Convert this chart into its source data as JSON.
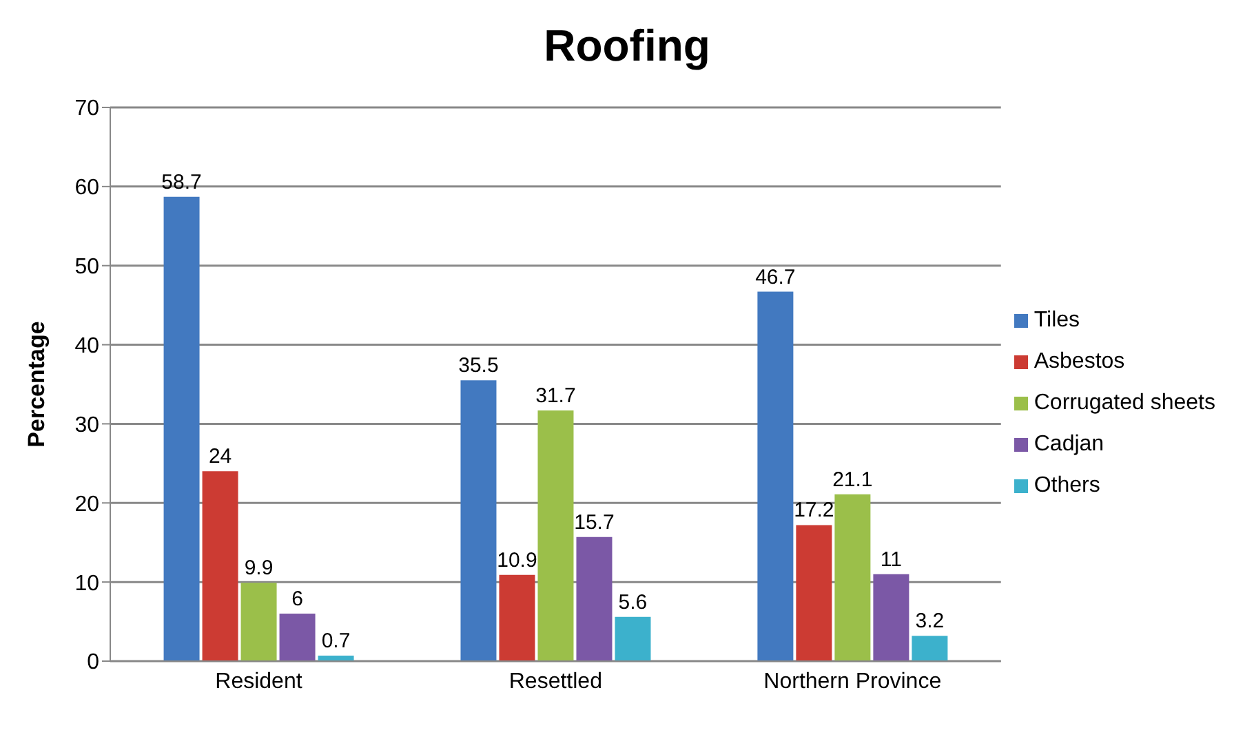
{
  "chart_data": {
    "type": "bar",
    "title": "Roofing",
    "ylabel": "Percentage",
    "categories": [
      "Resident",
      "Resettled",
      "Northern Province"
    ],
    "series": [
      {
        "name": "Tiles",
        "color": "#4279c0",
        "values": [
          58.7,
          35.5,
          46.7
        ]
      },
      {
        "name": "Asbestos",
        "color": "#cc3b33",
        "values": [
          24,
          10.9,
          17.2
        ]
      },
      {
        "name": "Corrugated sheets",
        "color": "#9bbf4a",
        "values": [
          9.9,
          31.7,
          21.1
        ]
      },
      {
        "name": "Cadjan",
        "color": "#7b58a6",
        "values": [
          6,
          15.7,
          11
        ]
      },
      {
        "name": "Others",
        "color": "#3cb1cc",
        "values": [
          0.7,
          5.6,
          3.2
        ]
      }
    ],
    "ylim": [
      0,
      70
    ],
    "yticks": [
      0,
      10,
      20,
      30,
      40,
      50,
      60,
      70
    ],
    "grid": "y",
    "legend": "right",
    "data_labels": true
  }
}
